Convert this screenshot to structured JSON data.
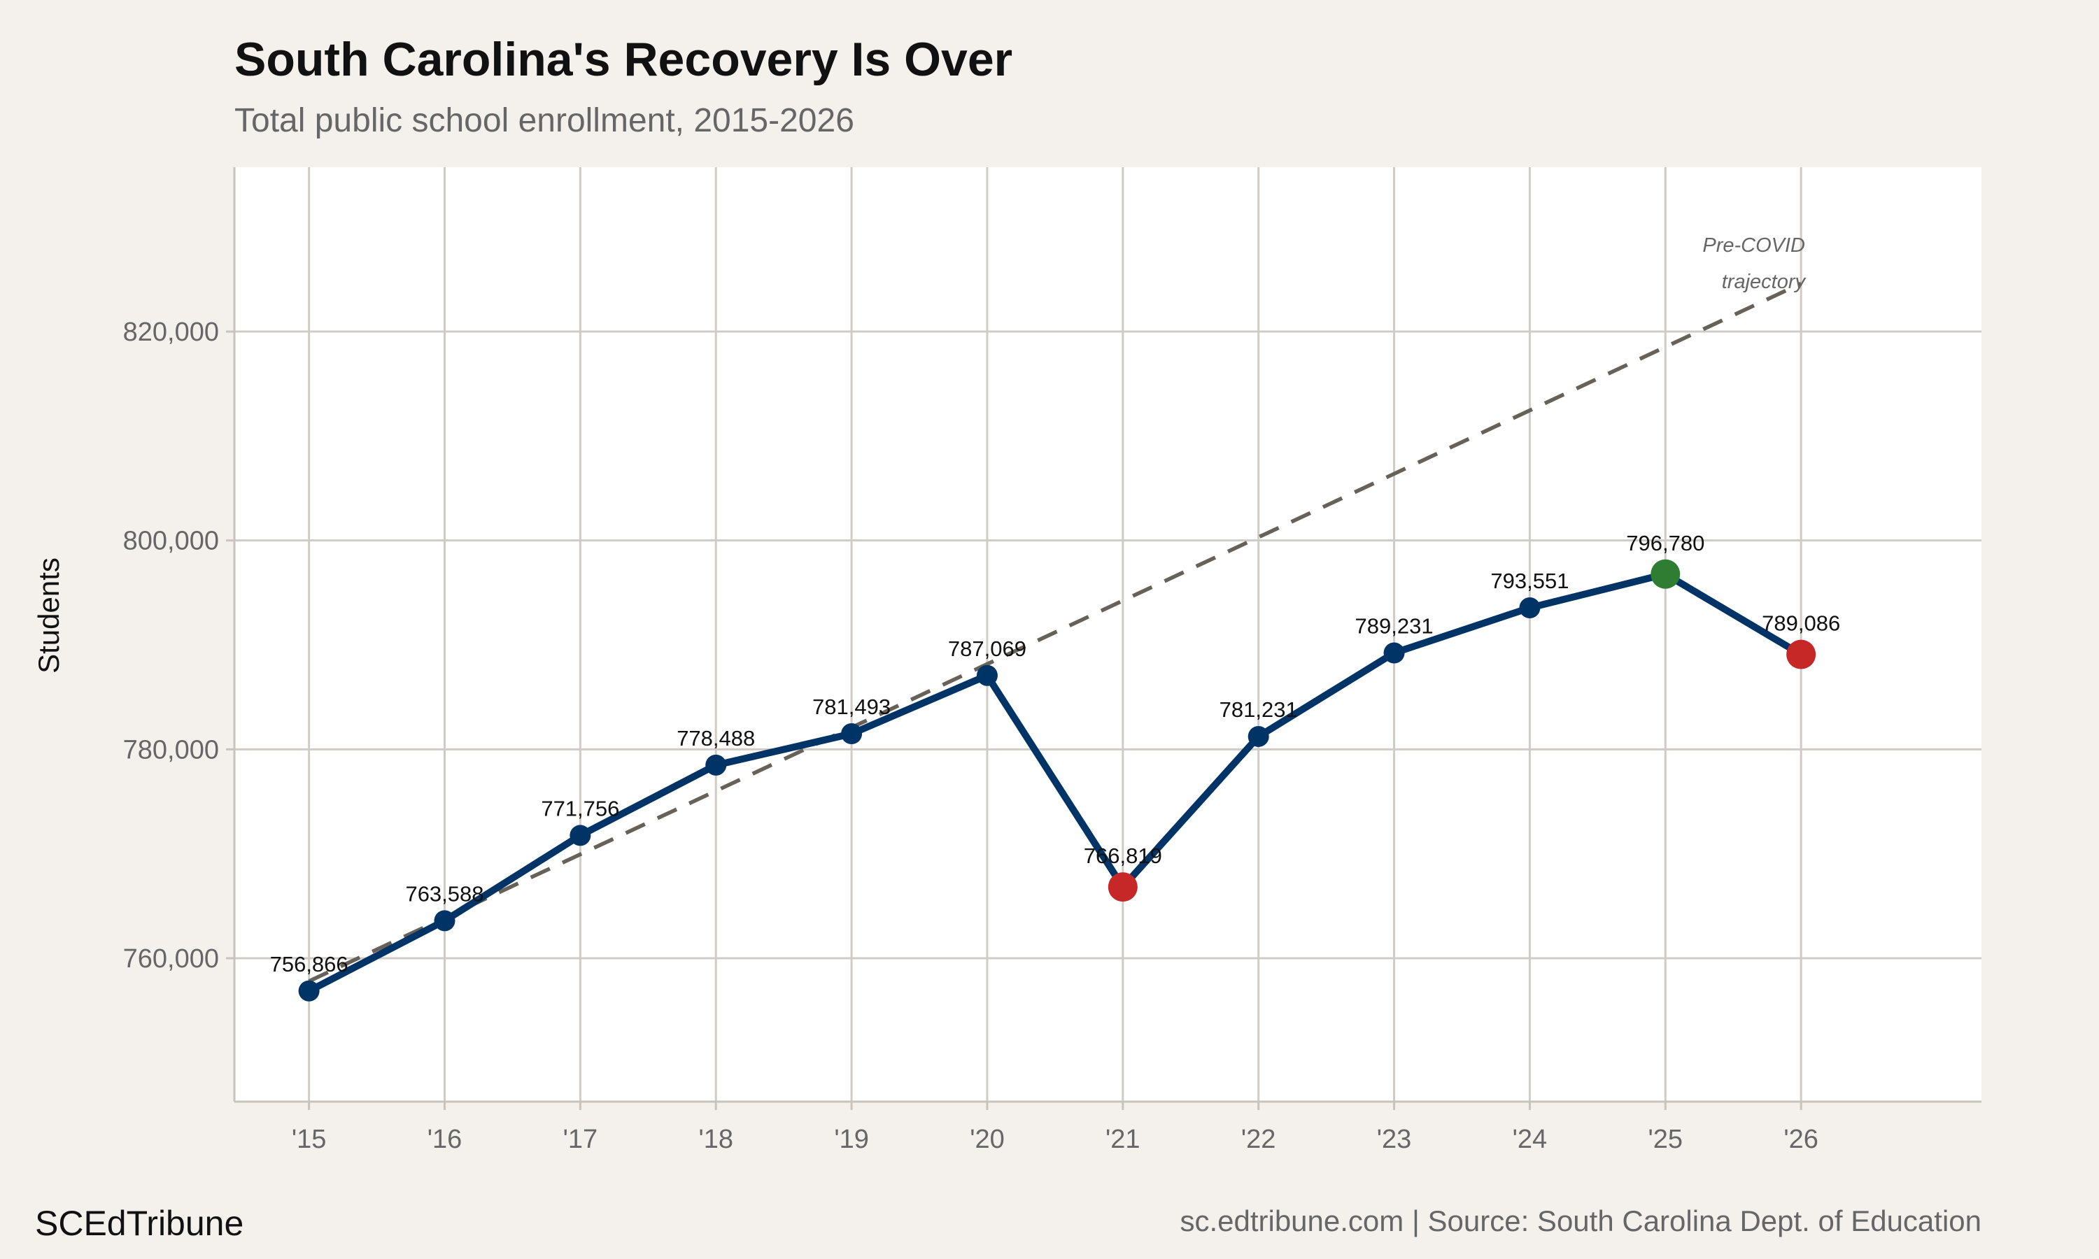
{
  "chart_data": {
    "type": "line",
    "title": "South Carolina's Recovery Is Over",
    "subtitle": "Total public school enrollment, 2015-2026",
    "xlabel": "",
    "ylabel": "Students",
    "categories": [
      "'15",
      "'16",
      "'17",
      "'18",
      "'19",
      "'20",
      "'21",
      "'22",
      "'23",
      "'24",
      "'25",
      "'26"
    ],
    "x": [
      2015,
      2016,
      2017,
      2018,
      2019,
      2020,
      2021,
      2022,
      2023,
      2024,
      2025,
      2026
    ],
    "series": [
      {
        "values": [
          756866,
          763588,
          771756,
          778488,
          781493,
          787069,
          766819,
          781231,
          789231,
          793551,
          796780,
          789086
        ],
        "labels": [
          "756,866",
          "763,588",
          "771,756",
          "778,488",
          "781,493",
          "787,069",
          "766,819",
          "781,231",
          "789,231",
          "793,551",
          "796,780",
          "789,086"
        ],
        "color": "#003366",
        "point_colors": [
          "#003366",
          "#003366",
          "#003366",
          "#003366",
          "#003366",
          "#003366",
          "#c62828",
          "#003366",
          "#003366",
          "#003366",
          "#2e7d32",
          "#c62828"
        ]
      }
    ],
    "trend": {
      "name_line1": "Pre-COVID",
      "name_line2": "trajectory",
      "x": [
        2015,
        2026
      ],
      "values": [
        757800,
        824600
      ],
      "color": "#666259",
      "style": "dashed"
    },
    "yticks": [
      760000,
      780000,
      800000,
      820000
    ],
    "ytick_labels": [
      "760,000",
      "780,000",
      "800,000",
      "820,000"
    ],
    "ylim": [
      746270,
      835740
    ],
    "xlim": [
      2014.45,
      2027.33
    ],
    "grid": true,
    "background": "#f4f1ed",
    "panel_background": "#ffffff"
  },
  "footer": {
    "brand": "SCEdTribune",
    "source": "sc.edtribune.com | Source: South Carolina Dept. of Education"
  }
}
